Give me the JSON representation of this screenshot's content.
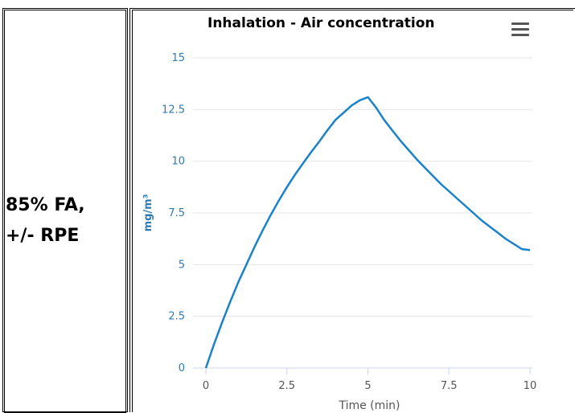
{
  "row_label": {
    "line1": "85% FA,",
    "line2": "+/- RPE"
  },
  "menu": {
    "icon": "hamburger-menu-icon"
  },
  "colors": {
    "series": "#1a82c8",
    "axis_text": "#2b7ab8",
    "grid": "#e6e6e6",
    "x_tick_text": "#555555"
  },
  "chart_data": {
    "type": "line",
    "title": "Inhalation - Air concentration",
    "xlabel": "Time (min)",
    "ylabel": "mg/m³",
    "xlim": [
      0,
      10
    ],
    "ylim": [
      0,
      15
    ],
    "x_ticks": [
      0,
      2.5,
      5,
      7.5,
      10
    ],
    "x_tick_labels": [
      "0",
      "2.5",
      "5",
      "7.5",
      "10"
    ],
    "y_ticks": [
      0,
      2.5,
      5,
      7.5,
      10,
      12.5,
      15
    ],
    "y_tick_labels": [
      "0",
      "2.5",
      "5",
      "7.5",
      "10",
      "12.5",
      "15"
    ],
    "grid": true,
    "series": [
      {
        "x": [
          0,
          0.25,
          0.5,
          0.75,
          1,
          1.25,
          1.5,
          1.75,
          2,
          2.25,
          2.5,
          2.75,
          3,
          3.25,
          3.5,
          3.75,
          4,
          4.25,
          4.5,
          4.75,
          5,
          5.25,
          5.5,
          5.75,
          6,
          6.25,
          6.5,
          6.75,
          7,
          7.25,
          7.5,
          7.75,
          8,
          8.25,
          8.5,
          8.75,
          9,
          9.25,
          9.5,
          9.75,
          10
        ],
        "y": [
          0,
          1.15,
          2.2,
          3.2,
          4.15,
          5.0,
          5.85,
          6.65,
          7.4,
          8.1,
          8.75,
          9.35,
          9.9,
          10.45,
          10.95,
          11.5,
          12.0,
          12.35,
          12.7,
          12.95,
          13.1,
          12.6,
          12.0,
          11.5,
          11.0,
          10.55,
          10.1,
          9.7,
          9.3,
          8.9,
          8.55,
          8.2,
          7.85,
          7.5,
          7.15,
          6.85,
          6.55,
          6.25,
          6.0,
          5.75,
          5.7
        ]
      }
    ]
  }
}
